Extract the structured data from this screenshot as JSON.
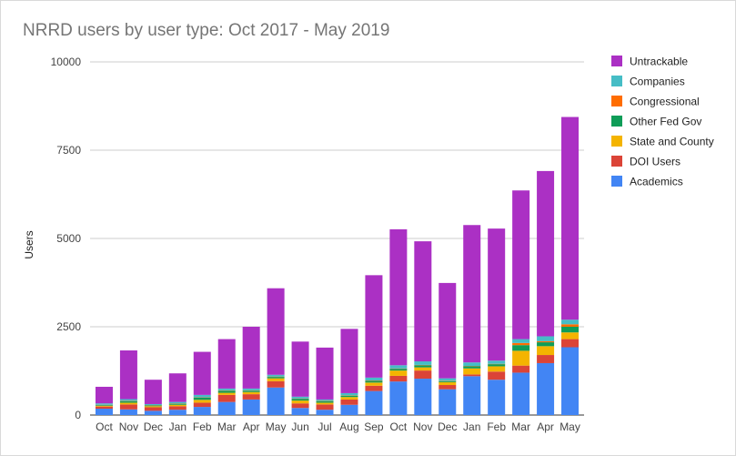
{
  "chart_data": {
    "type": "bar",
    "stacked": true,
    "title": "NRRD users by user type: Oct 2017 - May 2019",
    "xlabel": "",
    "ylabel": "Users",
    "ylim": [
      0,
      10000
    ],
    "yticks": [
      0,
      2500,
      5000,
      7500,
      10000
    ],
    "grid": true,
    "legend_position": "right",
    "categories": [
      "Oct",
      "Nov",
      "Dec",
      "Jan",
      "Feb",
      "Mar",
      "Apr",
      "May",
      "Jun",
      "Jul",
      "Aug",
      "Sep",
      "Oct",
      "Nov",
      "Dec",
      "Jan",
      "Feb",
      "Mar",
      "Apr",
      "May"
    ],
    "series": [
      {
        "name": "Academics",
        "color": "#4285F4",
        "values": [
          180,
          160,
          120,
          150,
          230,
          370,
          440,
          780,
          200,
          150,
          290,
          680,
          950,
          1030,
          730,
          1100,
          1000,
          1200,
          1470,
          1920
        ]
      },
      {
        "name": "DOI Users",
        "color": "#DB4437",
        "values": [
          60,
          140,
          100,
          100,
          120,
          200,
          150,
          180,
          130,
          150,
          150,
          150,
          160,
          230,
          120,
          50,
          230,
          200,
          230,
          230
        ]
      },
      {
        "name": "State and County",
        "color": "#F4B400",
        "values": [
          20,
          50,
          30,
          40,
          80,
          60,
          60,
          80,
          80,
          50,
          70,
          90,
          150,
          90,
          80,
          170,
          150,
          420,
          250,
          190
        ]
      },
      {
        "name": "Other Fed Gov",
        "color": "#0F9D58",
        "values": [
          20,
          40,
          20,
          30,
          60,
          60,
          40,
          40,
          50,
          40,
          40,
          50,
          50,
          60,
          30,
          60,
          60,
          160,
          110,
          160
        ]
      },
      {
        "name": "Congressional",
        "color": "#FF6D00",
        "values": [
          10,
          10,
          10,
          10,
          10,
          10,
          10,
          10,
          10,
          10,
          10,
          10,
          10,
          10,
          10,
          10,
          10,
          60,
          30,
          70
        ]
      },
      {
        "name": "Companies",
        "color": "#46BDC6",
        "values": [
          40,
          50,
          30,
          40,
          70,
          50,
          50,
          50,
          50,
          40,
          60,
          80,
          90,
          100,
          70,
          100,
          90,
          110,
          140,
          130
        ]
      },
      {
        "name": "Untrackable",
        "color": "#AB30C4",
        "values": [
          470,
          1380,
          690,
          810,
          1220,
          1400,
          1750,
          2450,
          1560,
          1470,
          1820,
          2900,
          3850,
          3400,
          2700,
          3890,
          3740,
          4210,
          4680,
          5740
        ]
      }
    ]
  }
}
